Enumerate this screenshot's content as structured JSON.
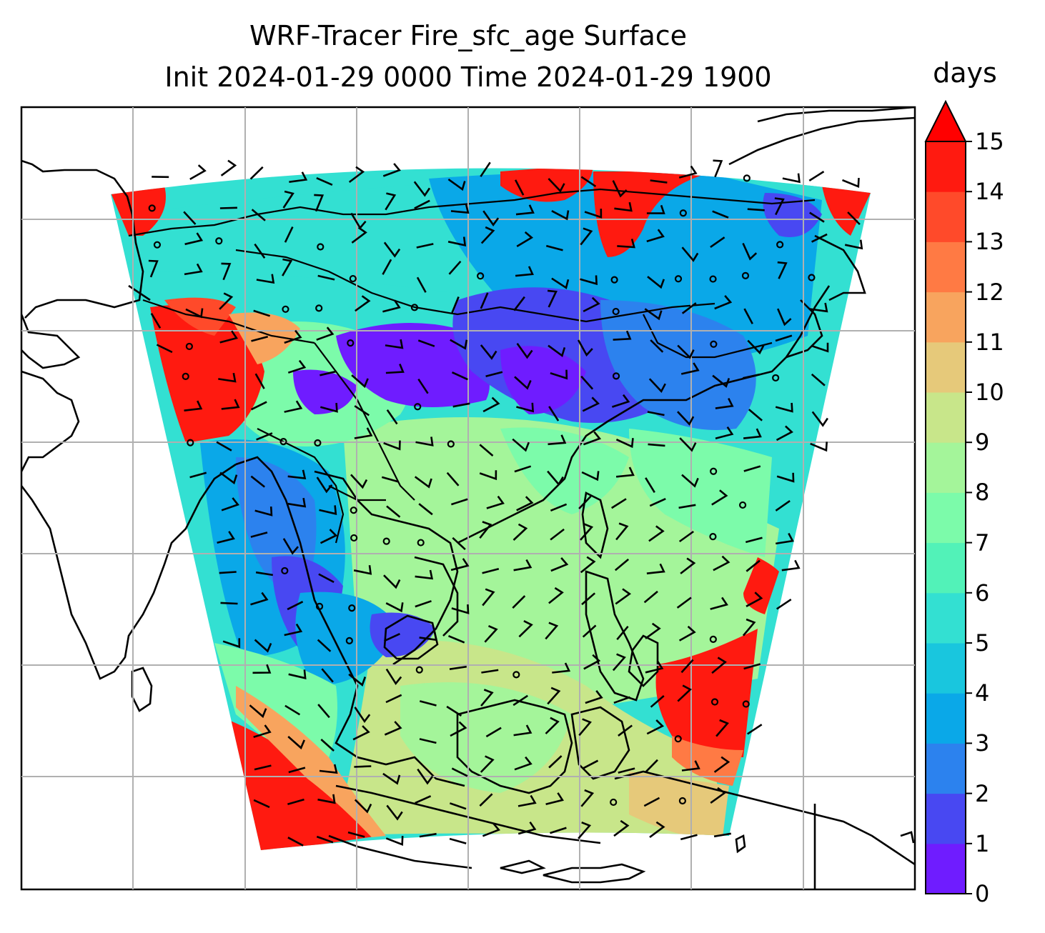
{
  "title": {
    "line1": "WRF-Tracer Fire_sfc_age Surface",
    "line2": "Init 2024-01-29 0000 Time 2024-01-29 1900"
  },
  "colorbar": {
    "label": "days",
    "ticks": [
      "0",
      "1",
      "2",
      "3",
      "4",
      "5",
      "6",
      "7",
      "8",
      "9",
      "10",
      "11",
      "12",
      "13",
      "14",
      "15"
    ],
    "colors": [
      "#6f1cff",
      "#4848f2",
      "#2c82ee",
      "#0aa8e8",
      "#19c6de",
      "#33e0d2",
      "#52f2b8",
      "#7cfbaa",
      "#a4f59a",
      "#c8e68a",
      "#e6c97a",
      "#f8a45e",
      "#ff7a44",
      "#ff4a2a",
      "#ff1a10"
    ],
    "extend_color": "#ff0000"
  },
  "map": {
    "field": "Fire_sfc_age",
    "level": "Surface",
    "units": "days",
    "gridline_color": "#b0b0b0"
  }
}
